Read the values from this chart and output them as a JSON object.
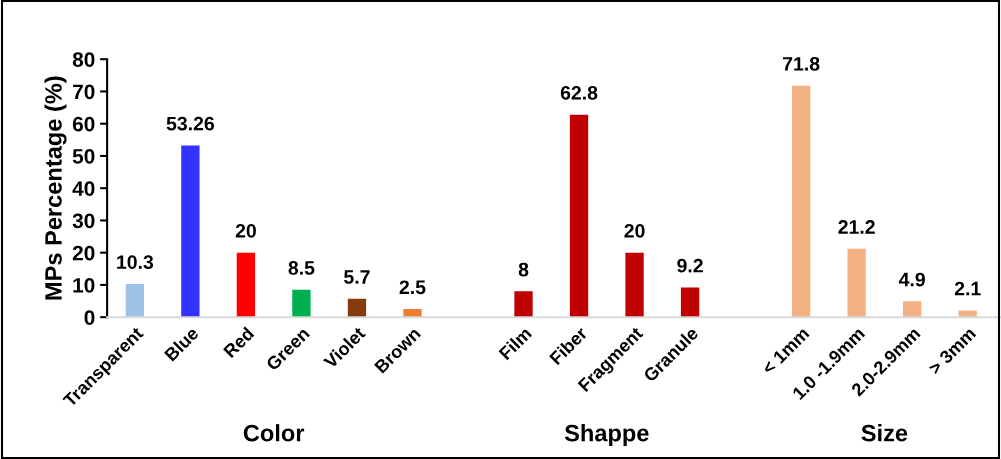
{
  "chart_data": {
    "type": "bar",
    "ylabel": "MPs Percentage (%)",
    "categories": [
      "Transparent",
      "Blue",
      "Red",
      "Green",
      "Violet",
      "Brown",
      null,
      "Film",
      "Fiber",
      "Fragment",
      "Granule",
      null,
      "< 1mm",
      "1.0 -1.9mm",
      "2.0-2.9mm",
      "> 3mm"
    ],
    "values": [
      10.3,
      53.26,
      20,
      8.5,
      5.7,
      2.5,
      null,
      8,
      62.8,
      20,
      9.2,
      null,
      71.8,
      21.2,
      4.9,
      2.1
    ],
    "colors": [
      "#9dc3e6",
      "#3333ff",
      "#ff0000",
      "#00b050",
      "#843c0c",
      "#ed7d31",
      null,
      "#c00000",
      "#c00000",
      "#c00000",
      "#c00000",
      null,
      "#f4b183",
      "#f4b183",
      "#f4b183",
      "#f4b183"
    ],
    "ylim": [
      0,
      80
    ],
    "yticks": [
      0,
      10,
      20,
      30,
      40,
      50,
      60,
      70,
      80
    ],
    "data_labels": true,
    "grid": false,
    "legend": false,
    "annotations": [
      "Color",
      "Shappe",
      "Size"
    ]
  }
}
